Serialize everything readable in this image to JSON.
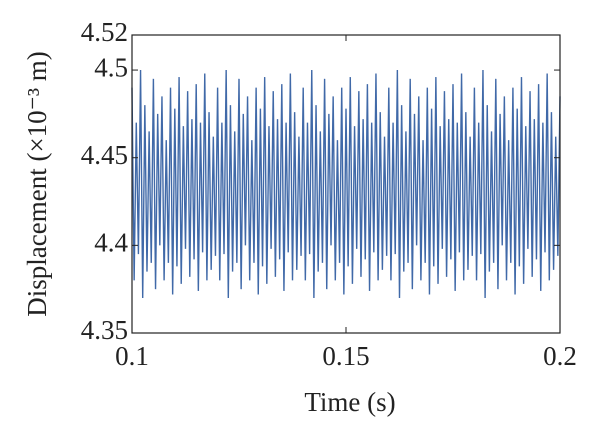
{
  "chart_data": {
    "type": "line",
    "xlabel": "Time (s)",
    "ylabel": "Displacement (×10⁻³ m)",
    "color": "#4069a8",
    "xlim": [
      0.1,
      0.2
    ],
    "xticks": [
      0.1,
      0.15,
      0.2
    ],
    "ylim": [
      4.35,
      4.52
    ],
    "yticks": [
      4.35,
      4.4,
      4.45,
      4.5,
      4.52
    ],
    "x": [
      0.1,
      0.1005,
      0.101,
      0.1015,
      0.102,
      0.1025,
      0.103,
      0.1035,
      0.104,
      0.1045,
      0.105,
      0.1055,
      0.106,
      0.1065,
      0.107,
      0.1075,
      0.108,
      0.1085,
      0.109,
      0.1095,
      0.11,
      0.1105,
      0.111,
      0.1115,
      0.112,
      0.1125,
      0.113,
      0.1135,
      0.114,
      0.1145,
      0.115,
      0.1155,
      0.116,
      0.1165,
      0.117,
      0.1175,
      0.118,
      0.1185,
      0.119,
      0.1195,
      0.12,
      0.1205,
      0.121,
      0.1215,
      0.122,
      0.1225,
      0.123,
      0.1235,
      0.124,
      0.1245,
      0.125,
      0.1255,
      0.126,
      0.1265,
      0.127,
      0.1275,
      0.128,
      0.1285,
      0.129,
      0.1295,
      0.13,
      0.1305,
      0.131,
      0.1315,
      0.132,
      0.1325,
      0.133,
      0.1335,
      0.134,
      0.1345,
      0.135,
      0.1355,
      0.136,
      0.1365,
      0.137,
      0.1375,
      0.138,
      0.1385,
      0.139,
      0.1395,
      0.14,
      0.1405,
      0.141,
      0.1415,
      0.142,
      0.1425,
      0.143,
      0.1435,
      0.144,
      0.1445,
      0.145,
      0.1455,
      0.146,
      0.1465,
      0.147,
      0.1475,
      0.148,
      0.1485,
      0.149,
      0.1495,
      0.15,
      0.1505,
      0.151,
      0.1515,
      0.152,
      0.1525,
      0.153,
      0.1535,
      0.154,
      0.1545,
      0.155,
      0.1555,
      0.156,
      0.1565,
      0.157,
      0.1575,
      0.158,
      0.1585,
      0.159,
      0.1595,
      0.16,
      0.1605,
      0.161,
      0.1615,
      0.162,
      0.1625,
      0.163,
      0.1635,
      0.164,
      0.1645,
      0.165,
      0.1655,
      0.166,
      0.1665,
      0.167,
      0.1675,
      0.168,
      0.1685,
      0.169,
      0.1695,
      0.17,
      0.1705,
      0.171,
      0.1715,
      0.172,
      0.1725,
      0.173,
      0.1735,
      0.174,
      0.1745,
      0.175,
      0.1755,
      0.176,
      0.1765,
      0.177,
      0.1775,
      0.178,
      0.1785,
      0.179,
      0.1795,
      0.18,
      0.1805,
      0.181,
      0.1815,
      0.182,
      0.1825,
      0.183,
      0.1835,
      0.184,
      0.1845,
      0.185,
      0.1855,
      0.186,
      0.1865,
      0.187,
      0.1875,
      0.188,
      0.1885,
      0.189,
      0.1895,
      0.19,
      0.1905,
      0.191,
      0.1915,
      0.192,
      0.1925,
      0.193,
      0.1935,
      0.194,
      0.1945,
      0.195,
      0.1955,
      0.196,
      0.1965,
      0.197,
      0.1975,
      0.198,
      0.1985,
      0.199,
      0.1995,
      0.2
    ],
    "values": [
      4.49,
      4.38,
      4.47,
      4.395,
      4.5,
      4.37,
      4.48,
      4.385,
      4.465,
      4.39,
      4.495,
      4.375,
      4.475,
      4.4,
      4.485,
      4.38,
      4.46,
      4.39,
      4.49,
      4.372,
      4.478,
      4.388,
      4.496,
      4.378,
      4.468,
      4.398,
      4.488,
      4.382,
      4.472,
      4.392,
      4.492,
      4.374,
      4.47,
      4.396,
      4.498,
      4.38,
      4.476,
      4.386,
      4.462,
      4.394,
      4.49,
      4.38,
      4.47,
      4.395,
      4.5,
      4.37,
      4.48,
      4.385,
      4.465,
      4.39,
      4.495,
      4.375,
      4.475,
      4.4,
      4.485,
      4.38,
      4.46,
      4.39,
      4.49,
      4.372,
      4.478,
      4.388,
      4.496,
      4.378,
      4.468,
      4.398,
      4.488,
      4.382,
      4.472,
      4.392,
      4.492,
      4.374,
      4.47,
      4.396,
      4.498,
      4.38,
      4.476,
      4.386,
      4.462,
      4.394,
      4.49,
      4.38,
      4.47,
      4.395,
      4.5,
      4.37,
      4.48,
      4.385,
      4.465,
      4.39,
      4.495,
      4.375,
      4.475,
      4.4,
      4.485,
      4.38,
      4.46,
      4.39,
      4.49,
      4.372,
      4.478,
      4.388,
      4.496,
      4.378,
      4.468,
      4.398,
      4.488,
      4.382,
      4.472,
      4.392,
      4.492,
      4.374,
      4.47,
      4.396,
      4.498,
      4.38,
      4.476,
      4.386,
      4.462,
      4.394,
      4.49,
      4.38,
      4.47,
      4.395,
      4.5,
      4.37,
      4.48,
      4.385,
      4.465,
      4.39,
      4.495,
      4.375,
      4.475,
      4.4,
      4.485,
      4.38,
      4.46,
      4.39,
      4.49,
      4.372,
      4.478,
      4.388,
      4.496,
      4.378,
      4.468,
      4.398,
      4.488,
      4.382,
      4.472,
      4.392,
      4.492,
      4.374,
      4.47,
      4.396,
      4.498,
      4.38,
      4.476,
      4.386,
      4.462,
      4.394,
      4.49,
      4.38,
      4.47,
      4.395,
      4.5,
      4.37,
      4.48,
      4.385,
      4.465,
      4.39,
      4.495,
      4.375,
      4.475,
      4.4,
      4.485,
      4.38,
      4.46,
      4.39,
      4.49,
      4.372,
      4.478,
      4.388,
      4.496,
      4.378,
      4.468,
      4.398,
      4.488,
      4.382,
      4.472,
      4.392,
      4.492,
      4.374,
      4.47,
      4.396,
      4.498,
      4.38,
      4.476,
      4.386,
      4.462,
      4.394,
      4.485
    ]
  }
}
